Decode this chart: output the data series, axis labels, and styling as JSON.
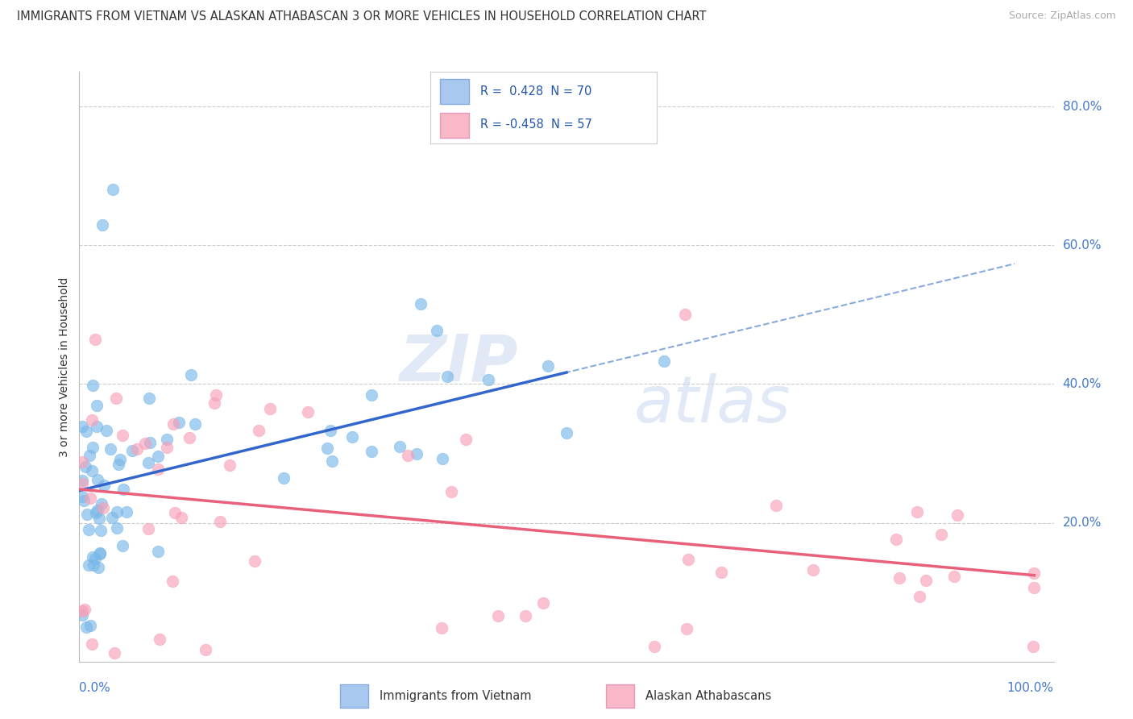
{
  "title": "IMMIGRANTS FROM VIETNAM VS ALASKAN ATHABASCAN 3 OR MORE VEHICLES IN HOUSEHOLD CORRELATION CHART",
  "source": "Source: ZipAtlas.com",
  "ylabel": "3 or more Vehicles in Household",
  "legend1_color": "#a8c8f0",
  "legend2_color": "#f8b8c8",
  "scatter1_color": "#7ab8e8",
  "scatter2_color": "#f8a0b8",
  "trend1_color": "#3366cc",
  "trend2_color": "#e8607a",
  "trend_dash_color": "#88aadd",
  "R1": 0.428,
  "N1": 70,
  "R2": -0.458,
  "N2": 57,
  "xmin": 0.0,
  "xmax": 100.0,
  "ymin": 0.0,
  "ymax": 85.0,
  "ytick_vals": [
    20,
    40,
    60,
    80
  ],
  "ytick_labels": [
    "20.0%",
    "40.0%",
    "60.0%",
    "80.0%"
  ],
  "xtick_left": "0.0%",
  "xtick_right": "100.0%",
  "figwidth": 14.06,
  "figheight": 8.92,
  "watermark1": "ZIP",
  "watermark2": "atlas",
  "legend1_text": "R =  0.428  N = 70",
  "legend2_text": "R = -0.458  N = 57",
  "bottom_legend1": "Immigrants from Vietnam",
  "bottom_legend2": "Alaskan Athabascans"
}
